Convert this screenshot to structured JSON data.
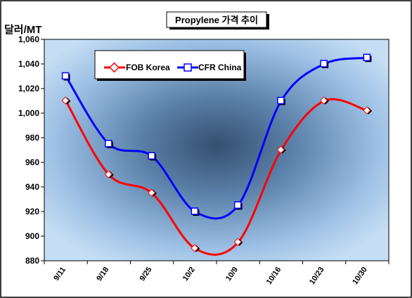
{
  "chart_data": {
    "type": "line",
    "title": "Propylene 가격 추이",
    "ylabel": "달러/MT",
    "xlabel": "",
    "categories": [
      "9/11",
      "9/18",
      "9/25",
      "10/2",
      "10/9",
      "10/16",
      "10/23",
      "10/30"
    ],
    "ylim": [
      880,
      1060
    ],
    "ytick_step": 20,
    "yticks": [
      "880",
      "900",
      "920",
      "940",
      "960",
      "980",
      "1,000",
      "1,020",
      "1,040",
      "1,060"
    ],
    "grid": false,
    "legend_position": "top-left",
    "series": [
      {
        "name": "FOB Korea",
        "color": "#ff0000",
        "values": [
          1010,
          950,
          935,
          890,
          895,
          970,
          1010,
          1002
        ]
      },
      {
        "name": "CFR China",
        "color": "#0000ff",
        "values": [
          1030,
          975,
          965,
          920,
          925,
          1010,
          1040,
          1045
        ]
      }
    ]
  }
}
